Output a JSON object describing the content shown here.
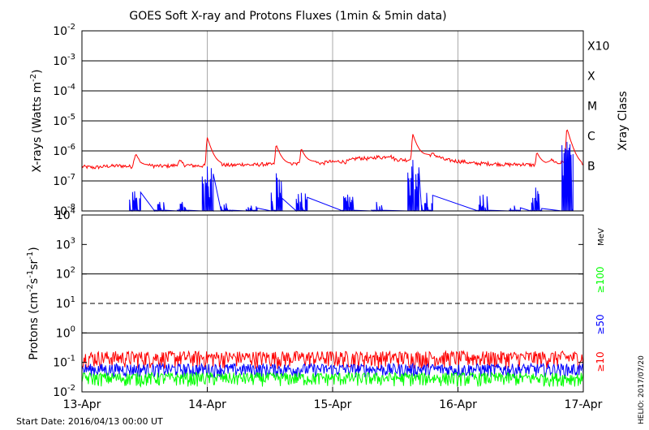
{
  "title": "GOES Soft X-ray and Protons Fluxes   (1min & 5min data)",
  "start_date": "Start Date: 2016/04/13 00:00 UT",
  "credit": "HELIO: 2017/07/20",
  "colors": {
    "red": "#ff0000",
    "blue": "#0000ff",
    "green": "#00ff00",
    "axis": "#000000",
    "grid": "#aaaaaa"
  },
  "chart_data": [
    {
      "type": "line",
      "panel": "xray",
      "ylabel": "X-rays (Watts m^-2)",
      "right_label": "Xray Class",
      "y_scale": "log",
      "ylim": [
        1e-08,
        0.01
      ],
      "ytick_labels": [
        {
          "base": "10",
          "exp": "-8"
        },
        {
          "base": "10",
          "exp": "-7"
        },
        {
          "base": "10",
          "exp": "-6"
        },
        {
          "base": "10",
          "exp": "-5"
        },
        {
          "base": "10",
          "exp": "-4"
        },
        {
          "base": "10",
          "exp": "-3"
        },
        {
          "base": "10",
          "exp": "-2"
        }
      ],
      "class_labels": [
        {
          "label": "B",
          "at": 1e-07
        },
        {
          "label": "C",
          "at": 1e-06
        },
        {
          "label": "M",
          "at": 1e-05
        },
        {
          "label": "X",
          "at": 0.0001
        },
        {
          "label": "X10",
          "at": 0.001
        }
      ],
      "x_unit": "days since start",
      "xlim": [
        0,
        4
      ],
      "grid": true,
      "series": [
        {
          "color": "red",
          "x": [
            0,
            0.1,
            0.2,
            0.3,
            0.4,
            0.43,
            0.47,
            0.55,
            0.65,
            0.75,
            0.78,
            0.82,
            0.9,
            1.0,
            1.1,
            1.2,
            1.28,
            1.35,
            1.45,
            1.55,
            1.65,
            1.75,
            1.85,
            1.92,
            1.97,
            2.0,
            2.05,
            2.1,
            2.2,
            2.3,
            2.35,
            2.4,
            2.45,
            2.5,
            2.6,
            2.7,
            2.8,
            2.9,
            2.95,
            3.0,
            3.05,
            3.1,
            3.2,
            3.3,
            3.4,
            3.5,
            3.6,
            3.7,
            3.75,
            3.8,
            3.85,
            3.9,
            3.95,
            4.0
          ],
          "y": [
            3e-07,
            2.8e-07,
            3.1e-07,
            3.2e-07,
            3e-07,
            7.5e-07,
            3.8e-07,
            3.2e-07,
            3.1e-07,
            3.3e-07,
            4.5e-07,
            3.4e-07,
            3.2e-07,
            3.2e-07,
            3.5e-07,
            3.3e-07,
            3.6e-07,
            3.4e-07,
            3.6e-07,
            3.5e-07,
            3.6e-07,
            3.8e-07,
            4.3e-07,
            3.8e-07,
            4.5e-07,
            4.2e-07,
            4.5e-07,
            4.3e-07,
            5.8e-07,
            5.5e-07,
            6.3e-07,
            6e-07,
            7.2e-07,
            5.2e-07,
            5e-07,
            6.3e-07,
            7.8e-07,
            5e-07,
            4.8e-07,
            4.5e-07,
            4.4e-07,
            3.9e-07,
            3.8e-07,
            3.7e-07,
            3.5e-07,
            3.6e-07,
            3.4e-07,
            3.6e-07,
            5e-07,
            3.8e-07,
            4.6e-07,
            3.2e-07,
            3.3e-07,
            3.2e-07
          ],
          "flares": [
            {
              "x": 0.43,
              "y": 8e-07
            },
            {
              "x": 1.0,
              "y": 2.8e-06
            },
            {
              "x": 1.55,
              "y": 1.6e-06
            },
            {
              "x": 1.75,
              "y": 1.2e-06
            },
            {
              "x": 2.64,
              "y": 3.6e-06
            },
            {
              "x": 3.63,
              "y": 9e-07
            },
            {
              "x": 3.87,
              "y": 5.5e-06
            }
          ]
        },
        {
          "color": "blue",
          "bursts": [
            {
              "x": 0.42,
              "y": 4.5e-08
            },
            {
              "x": 0.62,
              "y": 2e-08
            },
            {
              "x": 0.8,
              "y": 2e-08
            },
            {
              "x": 1.0,
              "y": 3e-07
            },
            {
              "x": 1.15,
              "y": 1.8e-08
            },
            {
              "x": 1.35,
              "y": 1.5e-08
            },
            {
              "x": 1.55,
              "y": 1.8e-07
            },
            {
              "x": 1.75,
              "y": 4e-08
            },
            {
              "x": 2.12,
              "y": 3.5e-08
            },
            {
              "x": 2.35,
              "y": 2e-08
            },
            {
              "x": 2.64,
              "y": 5e-07
            },
            {
              "x": 2.75,
              "y": 4e-08
            },
            {
              "x": 3.2,
              "y": 3.5e-08
            },
            {
              "x": 3.45,
              "y": 1.5e-08
            },
            {
              "x": 3.62,
              "y": 6e-08
            },
            {
              "x": 3.87,
              "y": 2e-06
            }
          ]
        }
      ]
    },
    {
      "type": "line",
      "panel": "protons",
      "ylabel": "Protons (cm^-2 s^-1 sr^-1)",
      "right_label": "MeV",
      "y_scale": "log",
      "ylim": [
        0.01,
        10000
      ],
      "ytick_labels": [
        {
          "base": "10",
          "exp": "-2"
        },
        {
          "base": "10",
          "exp": "-1"
        },
        {
          "base": "10",
          "exp": "0"
        },
        {
          "base": "10",
          "exp": "1"
        },
        {
          "base": "10",
          "exp": "2"
        },
        {
          "base": "10",
          "exp": "3"
        },
        {
          "base": "10",
          "exp": "4"
        }
      ],
      "dashed_threshold": 10,
      "x_unit": "days since start",
      "xlim": [
        0,
        4
      ],
      "xtick_labels": [
        "13-Apr",
        "14-Apr",
        "15-Apr",
        "16-Apr",
        "17-Apr"
      ],
      "grid": true,
      "series": [
        {
          "name": "≥10",
          "color": "red",
          "level": 0.15,
          "spread": 0.09
        },
        {
          "name": "≥50",
          "color": "blue",
          "level": 0.06,
          "spread": 0.03
        },
        {
          "name": "≥100",
          "color": "green",
          "level": 0.03,
          "spread": 0.015
        }
      ]
    }
  ]
}
